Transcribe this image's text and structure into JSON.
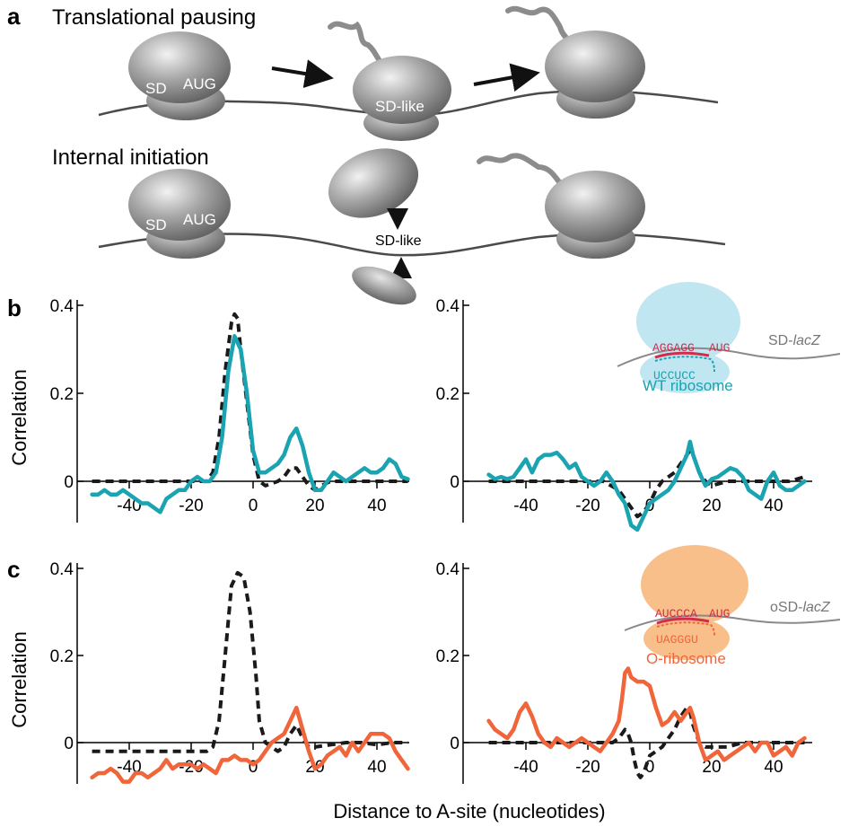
{
  "panel_a": {
    "letter": "a",
    "row1_title": "Translational pausing",
    "row2_title": "Internal initiation",
    "ribosome_labels": {
      "sd": "SD",
      "aug": "AUG",
      "sd_like": "SD-like"
    }
  },
  "panel_b": {
    "letter": "b"
  },
  "panel_c": {
    "letter": "c"
  },
  "y_axis_title": "Correlation",
  "x_axis_title": "Distance to A-site (nucleotides)",
  "inset_wt": {
    "sd_seq": "AGGAGG",
    "aug": "AUG",
    "anti_sd_seq": "UCCUCC",
    "gene": "SD-",
    "gene_italic": "lacZ",
    "name": "WT ribosome"
  },
  "inset_o": {
    "sd_seq": "AUCCCA",
    "aug": "AUG",
    "anti_sd_seq": "UAGGGU",
    "gene": "oSD-",
    "gene_italic": "lacZ",
    "name": "O-ribosome"
  },
  "colors": {
    "wt": "#1aa3b1",
    "orthogonal": "#f0653a",
    "dashed": "#1a1a1a",
    "wt_halo": "#bfe6f1",
    "o_halo": "#f9bf8a",
    "seq_red": "#d22c4a"
  },
  "chart_data": [
    {
      "type": "line",
      "panel": "b-left",
      "xlim": [
        -55,
        52
      ],
      "ylim": [
        -0.08,
        0.4
      ],
      "xticks": [
        -40,
        -20,
        0,
        20,
        40
      ],
      "yticks": [
        0,
        0.2,
        0.4
      ],
      "ytick_labels": [
        "0",
        "0.2",
        "0.4"
      ],
      "xtick_labels": [
        "-40",
        "-20",
        "0",
        "20",
        "40"
      ],
      "ylabel": "Correlation",
      "series": [
        {
          "style": "dashed",
          "color": "#1a1a1a",
          "x": [
            -52,
            -45,
            -40,
            -35,
            -30,
            -25,
            -20,
            -18,
            -15,
            -13,
            -11,
            -9,
            -7,
            -6,
            -5,
            -4,
            -2,
            0,
            2,
            4,
            6,
            8,
            10,
            12,
            14,
            16,
            18,
            20,
            22,
            25,
            30,
            35,
            40,
            45,
            50
          ],
          "y": [
            0,
            0,
            0,
            0,
            0,
            0,
            0,
            0,
            0,
            0.02,
            0.1,
            0.25,
            0.36,
            0.38,
            0.37,
            0.3,
            0.18,
            0.06,
            0,
            -0.01,
            -0.005,
            0,
            0.01,
            0.03,
            0.03,
            0.01,
            -0.01,
            -0.02,
            -0.01,
            0,
            0,
            0,
            0,
            0,
            0
          ]
        },
        {
          "style": "solid",
          "color": "#1aa3b1",
          "x": [
            -52,
            -50,
            -48,
            -46,
            -44,
            -42,
            -40,
            -38,
            -36,
            -34,
            -32,
            -30,
            -28,
            -26,
            -24,
            -22,
            -20,
            -18,
            -16,
            -14,
            -12,
            -10,
            -8,
            -6,
            -4,
            -2,
            0,
            2,
            4,
            6,
            8,
            10,
            12,
            14,
            16,
            18,
            20,
            22,
            24,
            26,
            28,
            30,
            32,
            34,
            36,
            38,
            40,
            42,
            44,
            46,
            48,
            50
          ],
          "y": [
            -0.03,
            -0.03,
            -0.02,
            -0.03,
            -0.03,
            -0.02,
            -0.03,
            -0.04,
            -0.05,
            -0.05,
            -0.06,
            -0.07,
            -0.04,
            -0.03,
            -0.02,
            -0.02,
            0,
            0.01,
            0,
            0,
            0.02,
            0.1,
            0.25,
            0.33,
            0.3,
            0.2,
            0.07,
            0.02,
            0.02,
            0.03,
            0.04,
            0.06,
            0.1,
            0.12,
            0.08,
            0.02,
            -0.02,
            -0.02,
            0,
            0.02,
            0.01,
            0,
            0.01,
            0.02,
            0.03,
            0.02,
            0.02,
            0.03,
            0.05,
            0.04,
            0.01,
            0.005
          ]
        }
      ]
    },
    {
      "type": "line",
      "panel": "b-right",
      "xlim": [
        -55,
        52
      ],
      "ylim": [
        -0.12,
        0.4
      ],
      "xticks": [
        -40,
        -20,
        0,
        20,
        40
      ],
      "yticks": [
        0,
        0.2,
        0.4
      ],
      "ytick_labels": [
        "0",
        "0.2",
        "0.4"
      ],
      "xtick_labels": [
        "-40",
        "-20",
        "0",
        "20",
        "40"
      ],
      "series": [
        {
          "style": "dashed",
          "color": "#1a1a1a",
          "x": [
            -52,
            -40,
            -30,
            -20,
            -15,
            -10,
            -8,
            -6,
            -4,
            -2,
            0,
            2,
            4,
            6,
            8,
            10,
            12,
            13,
            14,
            16,
            18,
            20,
            25,
            30,
            35,
            40,
            45,
            50
          ],
          "y": [
            0,
            0,
            0,
            0,
            0,
            -0.02,
            -0.04,
            -0.06,
            -0.08,
            -0.07,
            -0.05,
            -0.02,
            0,
            0.01,
            0.02,
            0.04,
            0.06,
            0.07,
            0.06,
            0.02,
            0,
            -0.01,
            0,
            0,
            0,
            0,
            0,
            0.01
          ]
        },
        {
          "style": "solid",
          "color": "#1aa3b1",
          "x": [
            -52,
            -50,
            -48,
            -46,
            -44,
            -42,
            -40,
            -38,
            -36,
            -34,
            -32,
            -30,
            -28,
            -26,
            -24,
            -22,
            -20,
            -18,
            -16,
            -14,
            -12,
            -10,
            -8,
            -6,
            -4,
            -2,
            0,
            2,
            4,
            6,
            8,
            10,
            12,
            13,
            14,
            16,
            18,
            20,
            22,
            24,
            26,
            28,
            30,
            32,
            34,
            36,
            38,
            40,
            42,
            44,
            46,
            48,
            50
          ],
          "y": [
            0.015,
            0.005,
            0.01,
            0.005,
            0.01,
            0.03,
            0.05,
            0.02,
            0.05,
            0.06,
            0.06,
            0.065,
            0.05,
            0.03,
            0.04,
            0.01,
            0,
            -0.01,
            0,
            0.02,
            0,
            -0.03,
            -0.05,
            -0.1,
            -0.11,
            -0.08,
            -0.05,
            -0.04,
            -0.03,
            -0.02,
            0,
            0.03,
            0.06,
            0.09,
            0.06,
            0.02,
            -0.01,
            0.005,
            0.01,
            0.02,
            0.03,
            0.025,
            0.01,
            -0.02,
            -0.03,
            -0.04,
            0,
            0.02,
            -0.01,
            -0.02,
            -0.02,
            -0.01,
            0
          ]
        }
      ]
    },
    {
      "type": "line",
      "panel": "c-left",
      "xlim": [
        -55,
        52
      ],
      "ylim": [
        -0.1,
        0.42
      ],
      "xticks": [
        -40,
        -20,
        0,
        20,
        40
      ],
      "yticks": [
        0,
        0.2,
        0.4
      ],
      "ytick_labels": [
        "0",
        "0.2",
        "0.4"
      ],
      "xtick_labels": [
        "-40",
        "-20",
        "0",
        "20",
        "40"
      ],
      "ylabel": "Correlation",
      "series": [
        {
          "style": "dashed",
          "color": "#1a1a1a",
          "x": [
            -52,
            -40,
            -30,
            -20,
            -15,
            -13,
            -11,
            -9,
            -7,
            -5,
            -3,
            -1,
            1,
            2,
            4,
            6,
            8,
            10,
            12,
            14,
            16,
            18,
            20,
            25,
            30,
            35,
            40,
            45,
            50
          ],
          "y": [
            -0.02,
            -0.02,
            -0.02,
            -0.02,
            -0.02,
            -0.01,
            0.05,
            0.2,
            0.36,
            0.39,
            0.38,
            0.3,
            0.15,
            0.05,
            0,
            -0.01,
            -0.02,
            -0.01,
            0.02,
            0.04,
            0.01,
            -0.01,
            -0.01,
            -0.005,
            0,
            0,
            -0.005,
            0,
            0
          ]
        },
        {
          "style": "solid",
          "color": "#f0653a",
          "x": [
            -52,
            -50,
            -48,
            -46,
            -44,
            -42,
            -40,
            -38,
            -36,
            -34,
            -32,
            -30,
            -28,
            -26,
            -24,
            -22,
            -20,
            -18,
            -16,
            -14,
            -12,
            -10,
            -8,
            -6,
            -4,
            -2,
            0,
            2,
            4,
            6,
            8,
            10,
            12,
            14,
            16,
            18,
            20,
            22,
            24,
            26,
            28,
            30,
            32,
            34,
            36,
            38,
            40,
            42,
            44,
            46,
            48,
            50
          ],
          "y": [
            -0.08,
            -0.07,
            -0.07,
            -0.06,
            -0.07,
            -0.09,
            -0.09,
            -0.07,
            -0.07,
            -0.08,
            -0.07,
            -0.06,
            -0.04,
            -0.06,
            -0.05,
            -0.05,
            -0.05,
            -0.06,
            -0.05,
            -0.06,
            -0.07,
            -0.04,
            -0.04,
            -0.03,
            -0.04,
            -0.04,
            -0.05,
            -0.04,
            -0.02,
            0,
            0.01,
            0.02,
            0.05,
            0.08,
            0.03,
            -0.02,
            -0.06,
            -0.05,
            -0.03,
            -0.02,
            -0.01,
            -0.03,
            0,
            -0.02,
            0,
            0.02,
            0.02,
            0.02,
            0.01,
            -0.02,
            -0.04,
            -0.06
          ]
        }
      ]
    },
    {
      "type": "line",
      "panel": "c-right",
      "xlim": [
        -55,
        52
      ],
      "ylim": [
        -0.1,
        0.42
      ],
      "xticks": [
        -40,
        -20,
        0,
        20,
        40
      ],
      "yticks": [
        0,
        0.2,
        0.4
      ],
      "ytick_labels": [
        "0",
        "0.2",
        "0.4"
      ],
      "xtick_labels": [
        "-40",
        "-20",
        "0",
        "20",
        "40"
      ],
      "series": [
        {
          "style": "dashed",
          "color": "#1a1a1a",
          "x": [
            -52,
            -40,
            -30,
            -20,
            -15,
            -12,
            -10,
            -9,
            -8,
            -7,
            -6,
            -5,
            -4,
            -3,
            -2,
            -1,
            0,
            2,
            4,
            6,
            8,
            10,
            12,
            13,
            14,
            16,
            18,
            20,
            25,
            30,
            35,
            40,
            45,
            50
          ],
          "y": [
            0,
            0,
            0,
            0,
            0,
            0,
            0.01,
            0.02,
            0.03,
            0.02,
            0,
            -0.04,
            -0.07,
            -0.08,
            -0.07,
            -0.05,
            -0.03,
            -0.02,
            -0.01,
            0.01,
            0.03,
            0.06,
            0.08,
            0.07,
            0.04,
            0,
            -0.01,
            -0.01,
            -0.01,
            0,
            0,
            0,
            0,
            0
          ]
        },
        {
          "style": "solid",
          "color": "#f0653a",
          "x": [
            -52,
            -50,
            -48,
            -46,
            -44,
            -42,
            -40,
            -38,
            -36,
            -34,
            -32,
            -30,
            -28,
            -26,
            -24,
            -22,
            -20,
            -18,
            -16,
            -14,
            -12,
            -10,
            -9,
            -8,
            -7,
            -6,
            -4,
            -2,
            0,
            2,
            4,
            6,
            8,
            10,
            12,
            13,
            14,
            16,
            18,
            20,
            22,
            24,
            26,
            28,
            30,
            32,
            34,
            36,
            38,
            40,
            42,
            44,
            46,
            48,
            50
          ],
          "y": [
            0.05,
            0.03,
            0.02,
            0.01,
            0.03,
            0.07,
            0.09,
            0.06,
            0.02,
            0,
            -0.01,
            0.01,
            0,
            -0.01,
            0,
            0.01,
            0,
            -0.01,
            -0.02,
            0,
            0.02,
            0.05,
            0.1,
            0.16,
            0.17,
            0.15,
            0.14,
            0.14,
            0.13,
            0.08,
            0.04,
            0.05,
            0.07,
            0.05,
            0.07,
            0.08,
            0.06,
            0,
            -0.04,
            -0.03,
            -0.02,
            -0.04,
            -0.03,
            -0.02,
            -0.01,
            0,
            -0.02,
            0,
            0,
            -0.03,
            -0.02,
            -0.01,
            -0.03,
            0,
            0.01
          ]
        }
      ]
    }
  ]
}
